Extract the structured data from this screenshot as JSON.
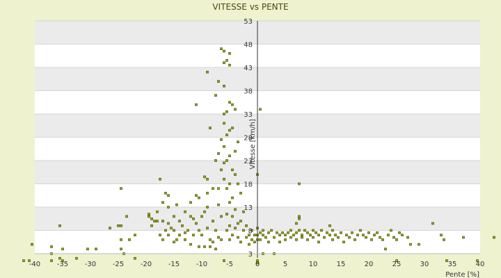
{
  "chart_data": {
    "type": "scatter",
    "title": "VITESSE vs PENTE",
    "xlabel": "Pente [%]",
    "ylabel": "Vitesse [km/h]",
    "xlim": [
      -40,
      40
    ],
    "ylim": [
      3,
      53
    ],
    "x_ticks": [
      -40,
      -35,
      -30,
      -25,
      -20,
      -15,
      -10,
      -5,
      0,
      5,
      10,
      15,
      20,
      25,
      30,
      35,
      40
    ],
    "y_ticks": [
      3,
      8,
      13,
      18,
      23,
      28,
      33,
      38,
      43,
      48,
      53
    ],
    "grid": true,
    "legend": "none",
    "colors": {
      "marker_fill": "#9aa600",
      "marker_stroke": "#3b4200",
      "band": "#ebebeb",
      "plot_bg": "#ffffff",
      "page_bg": "#eef2cf"
    },
    "points": [
      [
        -42,
        1.5
      ],
      [
        -41,
        1.5
      ],
      [
        -40.5,
        5
      ],
      [
        -37,
        4.5
      ],
      [
        -37,
        3
      ],
      [
        -37,
        1.5
      ],
      [
        -35.5,
        9
      ],
      [
        -35.5,
        2
      ],
      [
        -35,
        4
      ],
      [
        -35,
        1.5
      ],
      [
        -32.5,
        2
      ],
      [
        -30.5,
        4
      ],
      [
        -29,
        4
      ],
      [
        -26.5,
        8.5
      ],
      [
        -25,
        9
      ],
      [
        -24.5,
        9
      ],
      [
        -24.5,
        6
      ],
      [
        -24.5,
        4
      ],
      [
        -24.5,
        17
      ],
      [
        -24,
        3
      ],
      [
        -23.5,
        11
      ],
      [
        -23,
        6
      ],
      [
        -22,
        7
      ],
      [
        -22,
        2
      ],
      [
        -19.5,
        11.5
      ],
      [
        -19.5,
        11
      ],
      [
        -19,
        9
      ],
      [
        -19,
        10.5
      ],
      [
        -18.5,
        10
      ],
      [
        -18,
        10
      ],
      [
        -18,
        12
      ],
      [
        -17.5,
        19
      ],
      [
        -17.5,
        7
      ],
      [
        -17,
        6
      ],
      [
        -17,
        14
      ],
      [
        -17,
        10
      ],
      [
        -16.5,
        16
      ],
      [
        -16.5,
        8
      ],
      [
        -16,
        15.5
      ],
      [
        -16,
        7
      ],
      [
        -16,
        13
      ],
      [
        -16,
        9.5
      ],
      [
        -15.5,
        8.5
      ],
      [
        -15,
        5.5
      ],
      [
        -15,
        11
      ],
      [
        -15,
        8
      ],
      [
        -14.5,
        13.5
      ],
      [
        -14.5,
        6
      ],
      [
        -14,
        10
      ],
      [
        -14,
        7
      ],
      [
        -13.5,
        9
      ],
      [
        -13,
        7.5
      ],
      [
        -13,
        12
      ],
      [
        -13,
        6
      ],
      [
        -12.5,
        8
      ],
      [
        -12,
        14
      ],
      [
        -12,
        11
      ],
      [
        -12,
        5
      ],
      [
        -11.5,
        7
      ],
      [
        -11.5,
        10.5
      ],
      [
        -11,
        15.5
      ],
      [
        -11,
        9.5
      ],
      [
        -11,
        35
      ],
      [
        -10.5,
        4.5
      ],
      [
        -10.5,
        8
      ],
      [
        -10.5,
        15
      ],
      [
        -10,
        7
      ],
      [
        -10,
        11
      ],
      [
        -9.5,
        19.5
      ],
      [
        -9.5,
        12
      ],
      [
        -9.5,
        4.5
      ],
      [
        -9,
        42
      ],
      [
        -9,
        19
      ],
      [
        -9,
        13
      ],
      [
        -9,
        16
      ],
      [
        -9,
        8.5
      ],
      [
        -8.5,
        30
      ],
      [
        -8.5,
        4.5
      ],
      [
        -8.5,
        6
      ],
      [
        -8,
        17
      ],
      [
        -8,
        10
      ],
      [
        -8,
        5.5
      ],
      [
        -7.5,
        37
      ],
      [
        -7.5,
        23
      ],
      [
        -7.5,
        8
      ],
      [
        -7.5,
        4
      ],
      [
        -7,
        24.5
      ],
      [
        -7,
        40
      ],
      [
        -7,
        17
      ],
      [
        -7,
        13.5
      ],
      [
        -7,
        6.5
      ],
      [
        -6.5,
        21
      ],
      [
        -6.5,
        27.5
      ],
      [
        -6.5,
        47
      ],
      [
        -6.5,
        11
      ],
      [
        -6.5,
        6
      ],
      [
        -6,
        46.5
      ],
      [
        -6,
        44
      ],
      [
        -6,
        39
      ],
      [
        -6,
        33
      ],
      [
        -6,
        31
      ],
      [
        -6,
        26
      ],
      [
        -6,
        22.5
      ],
      [
        -6,
        19
      ],
      [
        -6,
        1.5
      ],
      [
        -5.5,
        44.5
      ],
      [
        -5.5,
        33.5
      ],
      [
        -5.5,
        28.5
      ],
      [
        -5.5,
        23
      ],
      [
        -5.5,
        17
      ],
      [
        -5.5,
        11.5
      ],
      [
        -5.5,
        8
      ],
      [
        -5,
        46
      ],
      [
        -5,
        43.5
      ],
      [
        -5,
        35.5
      ],
      [
        -5,
        29.5
      ],
      [
        -5,
        24
      ],
      [
        -5,
        18
      ],
      [
        -5,
        14
      ],
      [
        -5,
        9
      ],
      [
        -5,
        6
      ],
      [
        -4.5,
        35
      ],
      [
        -4.5,
        30
      ],
      [
        -4.5,
        21
      ],
      [
        -4.5,
        15
      ],
      [
        -4.5,
        11
      ],
      [
        -4.5,
        7
      ],
      [
        -4,
        34
      ],
      [
        -4,
        25
      ],
      [
        -4,
        20
      ],
      [
        -4,
        12.5
      ],
      [
        -4,
        8.5
      ],
      [
        -3.5,
        27
      ],
      [
        -3.5,
        18
      ],
      [
        -3.5,
        9.5
      ],
      [
        -3.5,
        6.5
      ],
      [
        -3,
        16
      ],
      [
        -3,
        10
      ],
      [
        -3,
        5.5
      ],
      [
        -2.5,
        12
      ],
      [
        -2.5,
        8
      ],
      [
        -2,
        9
      ],
      [
        -2,
        6.5
      ],
      [
        -1.5,
        7
      ],
      [
        -1.5,
        5
      ],
      [
        -1,
        8
      ],
      [
        -1,
        6
      ],
      [
        -0.5,
        7
      ],
      [
        -0.5,
        5.5
      ],
      [
        0,
        20
      ],
      [
        0,
        8.5
      ],
      [
        0,
        7
      ],
      [
        0,
        6
      ],
      [
        0,
        1.5
      ],
      [
        0,
        1
      ],
      [
        0.5,
        34
      ],
      [
        0.5,
        7.5
      ],
      [
        0.5,
        6
      ],
      [
        1,
        8
      ],
      [
        1,
        7
      ],
      [
        1,
        3
      ],
      [
        1.5,
        6.5
      ],
      [
        2,
        7.5
      ],
      [
        2,
        5.5
      ],
      [
        2.5,
        8
      ],
      [
        3,
        6.5
      ],
      [
        3,
        3
      ],
      [
        3.5,
        7.5
      ],
      [
        4,
        7
      ],
      [
        4,
        5.5
      ],
      [
        4.5,
        7.5
      ],
      [
        5,
        7
      ],
      [
        5,
        6
      ],
      [
        5.5,
        7.5
      ],
      [
        6,
        8
      ],
      [
        6,
        6.5
      ],
      [
        6.5,
        7
      ],
      [
        7,
        7.5
      ],
      [
        7,
        9.5
      ],
      [
        7,
        6
      ],
      [
        7.5,
        11
      ],
      [
        7.5,
        10.5
      ],
      [
        7.5,
        8
      ],
      [
        7.5,
        18
      ],
      [
        8,
        7
      ],
      [
        8,
        6.5
      ],
      [
        8.5,
        8
      ],
      [
        9,
        7.5
      ],
      [
        9,
        6
      ],
      [
        9.5,
        7
      ],
      [
        10,
        8
      ],
      [
        10,
        6.5
      ],
      [
        10.5,
        7.5
      ],
      [
        11,
        7
      ],
      [
        11,
        5.5
      ],
      [
        11.5,
        8
      ],
      [
        12,
        6.5
      ],
      [
        12.5,
        7.5
      ],
      [
        13,
        9
      ],
      [
        13,
        7
      ],
      [
        13.5,
        8
      ],
      [
        13.5,
        6
      ],
      [
        14,
        7
      ],
      [
        14.5,
        6.5
      ],
      [
        15,
        7.5
      ],
      [
        15.5,
        5.5
      ],
      [
        16,
        7
      ],
      [
        16.5,
        6.5
      ],
      [
        17,
        7.5
      ],
      [
        17.5,
        6
      ],
      [
        18,
        7
      ],
      [
        18.5,
        8
      ],
      [
        19,
        7
      ],
      [
        19.5,
        6.5
      ],
      [
        20,
        7.5
      ],
      [
        20.5,
        6
      ],
      [
        21,
        7
      ],
      [
        21.5,
        7.5
      ],
      [
        22,
        6.5
      ],
      [
        22.5,
        6
      ],
      [
        23,
        4
      ],
      [
        23.5,
        7
      ],
      [
        24,
        8
      ],
      [
        24.5,
        6.5
      ],
      [
        25,
        6
      ],
      [
        25,
        1.5
      ],
      [
        25.5,
        7.5
      ],
      [
        26,
        7
      ],
      [
        27,
        6.5
      ],
      [
        27.5,
        5
      ],
      [
        29,
        5
      ],
      [
        31.5,
        9.5
      ],
      [
        33,
        7
      ],
      [
        33.5,
        6
      ],
      [
        34,
        1.5
      ],
      [
        37,
        6.5
      ],
      [
        39.5,
        1.5
      ],
      [
        42.5,
        6.5
      ]
    ]
  }
}
